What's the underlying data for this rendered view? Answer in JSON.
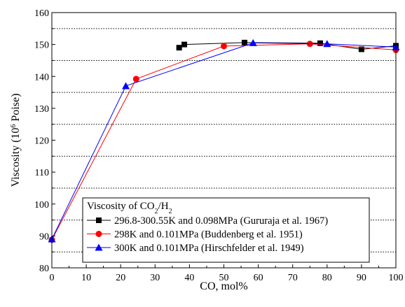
{
  "chart_data": {
    "type": "line",
    "xlabel": "CO, mol%",
    "ylabel_main": "Viscosity (10",
    "ylabel_sup": "6",
    "ylabel_tail": " Poise)",
    "xlim": [
      0,
      100
    ],
    "ylim": [
      80,
      160
    ],
    "xticks": [
      0,
      10,
      20,
      30,
      40,
      50,
      60,
      70,
      80,
      90,
      100
    ],
    "yticks": [
      80,
      90,
      100,
      110,
      120,
      130,
      140,
      150,
      160
    ],
    "minor_gridlines_y": [
      85,
      95,
      105,
      115,
      125,
      135,
      145,
      155
    ],
    "legend": {
      "title_main": "Viscosity of CO",
      "title_sub1": "2",
      "title_mid": "/H",
      "title_sub2": "2",
      "placement": "bottom-center"
    },
    "series": [
      {
        "name": "296.8-300.55K and 0.098MPa (Gururaja et al. 1967)",
        "color": "#000000",
        "marker": "square",
        "points": [
          [
            37,
            149
          ],
          [
            38.5,
            150
          ],
          [
            56,
            150.6
          ],
          [
            78,
            150.4
          ],
          [
            90,
            148.5
          ],
          [
            100,
            149.6
          ]
        ]
      },
      {
        "name": "298K and 0.101MPa (Buddenberg et al. 1951)",
        "color": "#ff0000",
        "marker": "circle",
        "points": [
          [
            0,
            88.8
          ],
          [
            24.5,
            139.2
          ],
          [
            50,
            149.5
          ],
          [
            75,
            150.2
          ],
          [
            100,
            148.3
          ]
        ]
      },
      {
        "name": "300K and 0.101MPa (Hirschfelder et al. 1949)",
        "color": "#0000ff",
        "marker": "triangle",
        "points": [
          [
            0,
            89
          ],
          [
            21.5,
            137
          ],
          [
            58.5,
            150.5
          ],
          [
            80,
            150.2
          ],
          [
            100,
            149.2
          ]
        ]
      }
    ]
  }
}
